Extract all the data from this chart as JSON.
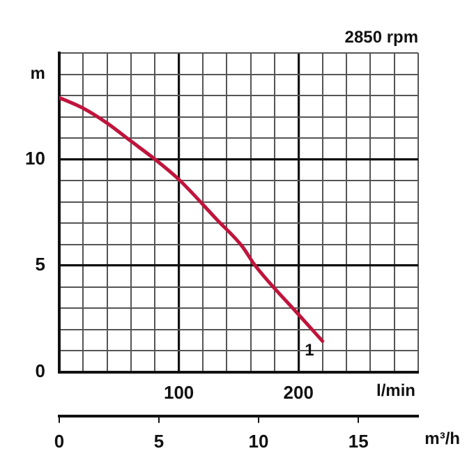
{
  "chart_data": {
    "type": "line",
    "xlabel": "l/min",
    "x2label": "m³/h",
    "ylabel": "m",
    "annotations": [
      "2850 rpm",
      {
        "text": "1",
        "x": 220,
        "y": 1.45
      }
    ],
    "series": [
      {
        "color": "#c0143c",
        "x": [
          0,
          20,
          40,
          60,
          80,
          100,
          132,
          153,
          163,
          200,
          220
        ],
        "values": [
          12.9,
          12.4,
          11.7,
          10.85,
          10,
          9.05,
          7.15,
          5.9,
          5.06,
          2.7,
          1.45
        ]
      }
    ],
    "xlim": [
      0,
      300
    ],
    "xticks": [
      {
        "value": 0,
        "label": null
      },
      {
        "value": 20,
        "label": null
      },
      {
        "value": 40,
        "label": null
      },
      {
        "value": 60,
        "label": null
      },
      {
        "value": 80,
        "label": null
      },
      100,
      {
        "value": 120,
        "label": null
      },
      {
        "value": 140,
        "label": null
      },
      {
        "value": 160,
        "label": null
      },
      {
        "value": 180,
        "label": null
      },
      200,
      {
        "value": 220,
        "label": null
      },
      {
        "value": 240,
        "label": null
      },
      {
        "value": 260,
        "label": null
      },
      {
        "value": 280,
        "label": null
      },
      {
        "value": 300,
        "label": null
      }
    ],
    "x2lim": [
      0,
      18
    ],
    "x2ticks": [
      0,
      5,
      10,
      15
    ],
    "ylim": [
      0,
      15
    ],
    "yticks": [
      0,
      {
        "value": 1,
        "label": null
      },
      {
        "value": 2,
        "label": null
      },
      {
        "value": 3,
        "label": null
      },
      {
        "value": 4,
        "label": null
      },
      5,
      {
        "value": 6,
        "label": null
      },
      {
        "value": 7,
        "label": null
      },
      {
        "value": 8,
        "label": null
      },
      {
        "value": 9,
        "label": null
      },
      10,
      {
        "value": 11,
        "label": null
      },
      {
        "value": 12,
        "label": null
      },
      {
        "value": 13,
        "label": null
      },
      {
        "value": 14,
        "label": null
      },
      {
        "value": 15,
        "label": null
      }
    ],
    "grid": true,
    "legend": false,
    "marker": "none",
    "line_style": "solid"
  }
}
